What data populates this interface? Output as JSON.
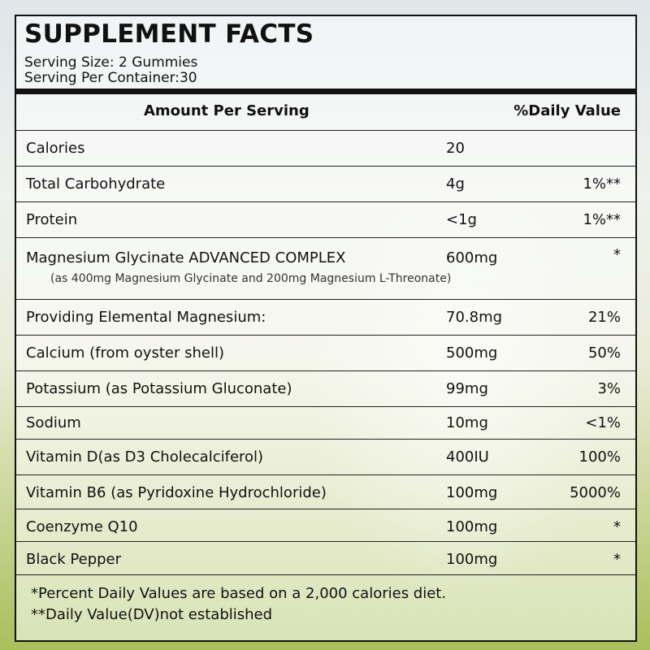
{
  "title": "SUPPLEMENT FACTS",
  "serving_size": "Serving Size: 2 Gummies",
  "servings_per_container": "Serving Per Container:30",
  "header": {
    "amount_per_serving": "Amount Per Serving",
    "daily_value": "%Daily Value"
  },
  "rows": [
    {
      "name": "Calories",
      "amount": "20",
      "dv": ""
    },
    {
      "name": "Total Carbohydrate",
      "amount": "4g",
      "dv": "1%**"
    },
    {
      "name": "Protein",
      "amount": "<1g",
      "dv": "1%**"
    },
    {
      "name": "Magnesium Glycinate ADVANCED COMPLEX",
      "amount": "600mg",
      "dv": "*",
      "sub": "(as 400mg Magnesium Glycinate and 200mg Magnesium L-Threonate)"
    },
    {
      "name": "Providing Elemental Magnesium:",
      "amount": "70.8mg",
      "dv": "21%"
    },
    {
      "name": "Calcium (from oyster shell)",
      "amount": "500mg",
      "dv": "50%"
    },
    {
      "name": "Potassium (as Potassium Gluconate)",
      "amount": "99mg",
      "dv": "3%"
    },
    {
      "name": "Sodium",
      "amount": "10mg",
      "dv": "<1%"
    },
    {
      "name": "Vitamin D(as D3 Cholecalciferol)",
      "amount": "400IU",
      "dv": "100%"
    },
    {
      "name": "Vitamin B6 (as Pyridoxine Hydrochloride)",
      "amount": "100mg",
      "dv": "5000%"
    },
    {
      "name": "Coenzyme Q10",
      "amount": "100mg",
      "dv": "*"
    },
    {
      "name": "Black Pepper",
      "amount": "100mg",
      "dv": "*"
    }
  ],
  "footnotes": {
    "percent_note": "*Percent Daily Values are based on a 2,000 calories diet.",
    "dv_note": "**Daily Value(DV)not established"
  }
}
